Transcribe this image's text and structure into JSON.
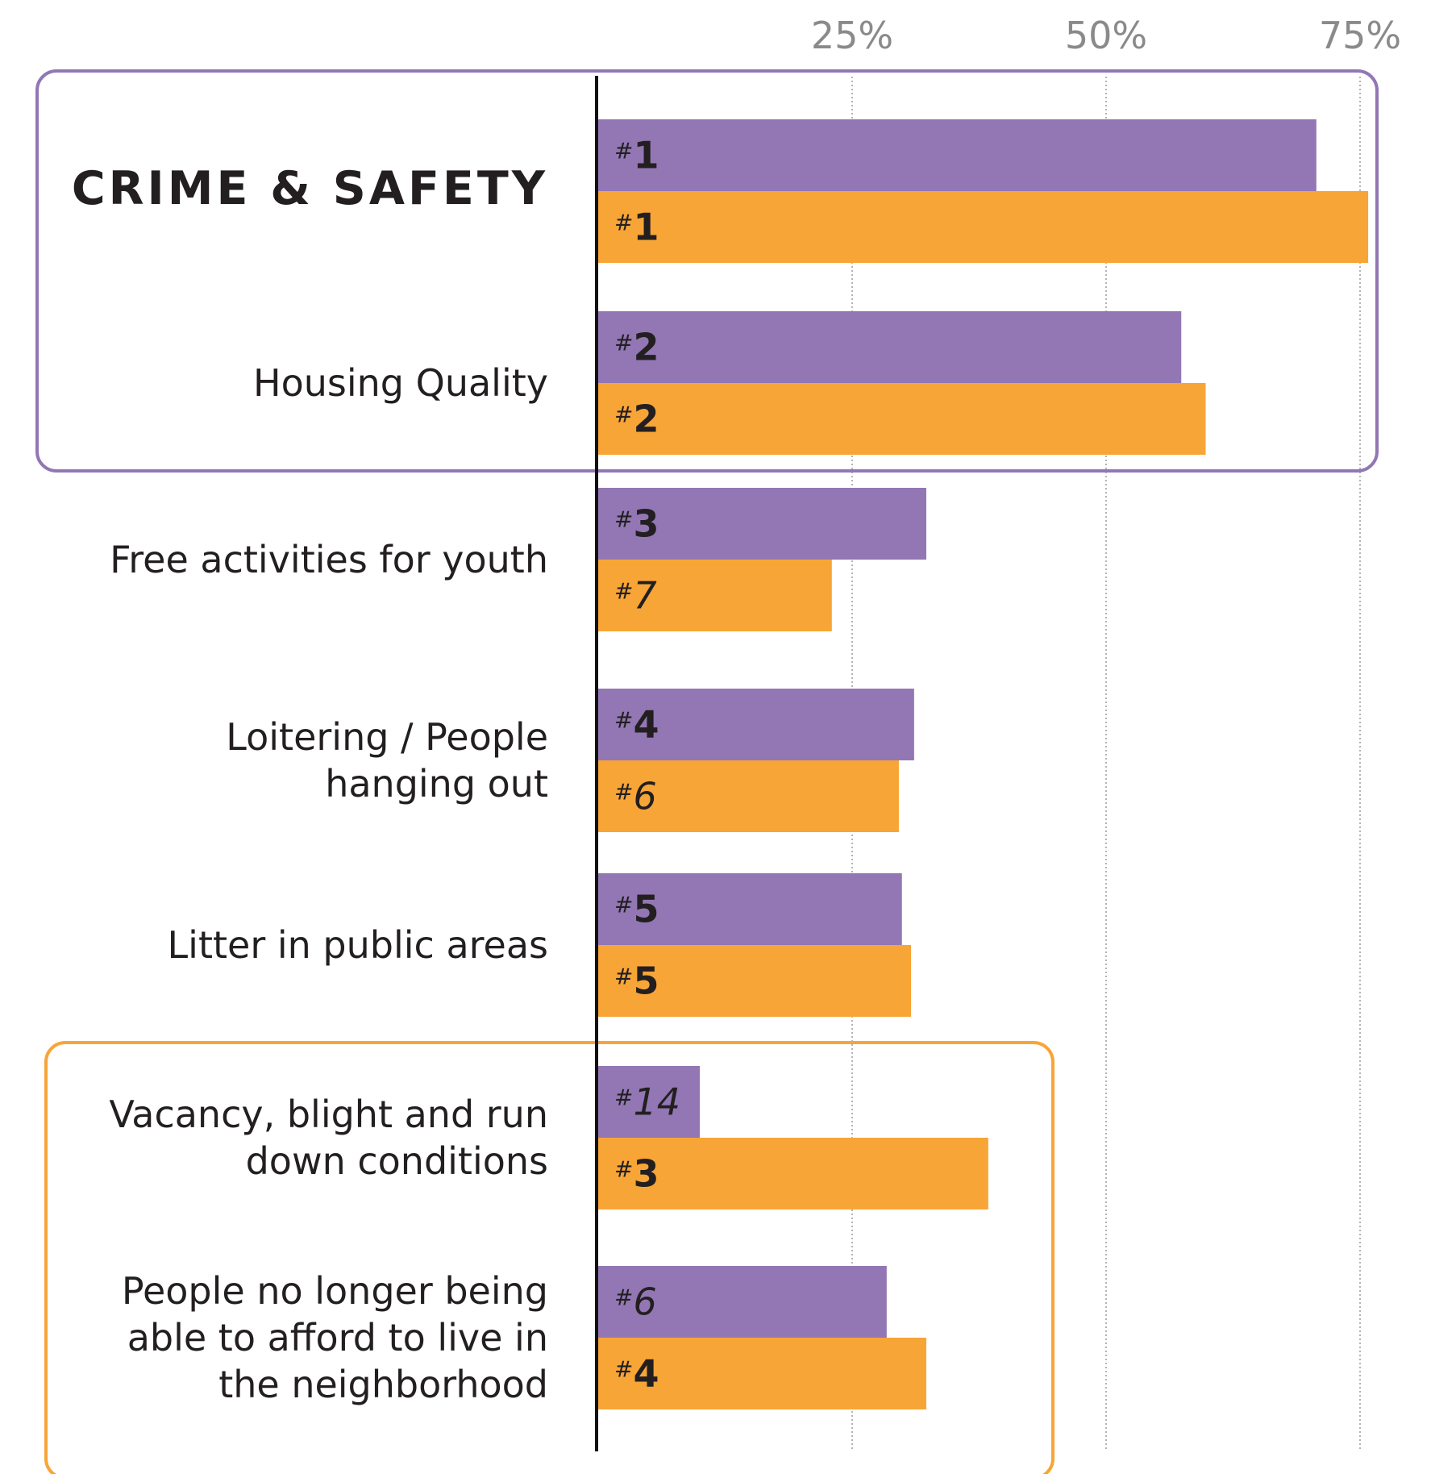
{
  "chart_data": {
    "type": "bar",
    "orientation": "horizontal",
    "axis": {
      "ticks": [
        25,
        50,
        75
      ],
      "tick_labels": [
        "25%",
        "50%",
        "75%"
      ],
      "xlim": [
        0,
        78
      ],
      "grid": "dotted"
    },
    "colors": {
      "series_a": "#9277b4",
      "series_b": "#f8a537",
      "highlight_box_a": "#9277b4",
      "highlight_box_b": "#f8a537"
    },
    "categories": [
      {
        "label": "CRIME & SAFETY",
        "emphasis": true
      },
      {
        "label": "Housing Quality"
      },
      {
        "label": "Free activities for youth"
      },
      {
        "label": "Loitering / People hanging out",
        "lines": [
          "Loitering / People",
          "hanging out"
        ]
      },
      {
        "label": "Litter in public areas"
      },
      {
        "label": "Vacancy, blight and run down conditions",
        "lines": [
          "Vacancy, blight and run",
          "down conditions"
        ]
      },
      {
        "label": "People no longer being able to afford to live in the neighborhood",
        "lines": [
          "People no longer being",
          "able to afford to live in",
          "the neighborhood"
        ]
      }
    ],
    "series": [
      {
        "color": "#9277b4",
        "values": [
          70.7,
          57.4,
          32.3,
          31.1,
          29.9,
          10.0,
          28.4
        ],
        "ranks": [
          "1",
          "2",
          "3",
          "4",
          "5",
          "14",
          "6"
        ]
      },
      {
        "color": "#f8a537",
        "values": [
          75.8,
          59.8,
          23.0,
          29.6,
          30.8,
          38.4,
          32.3
        ],
        "ranks": [
          "1",
          "2",
          "7",
          "6",
          "5",
          "3",
          "4"
        ]
      }
    ],
    "rank_prefix": "#",
    "highlight_groups": [
      {
        "color": "#9277b4",
        "categories": [
          0,
          1
        ]
      },
      {
        "color": "#f8a537",
        "categories": [
          5,
          6
        ]
      }
    ]
  }
}
